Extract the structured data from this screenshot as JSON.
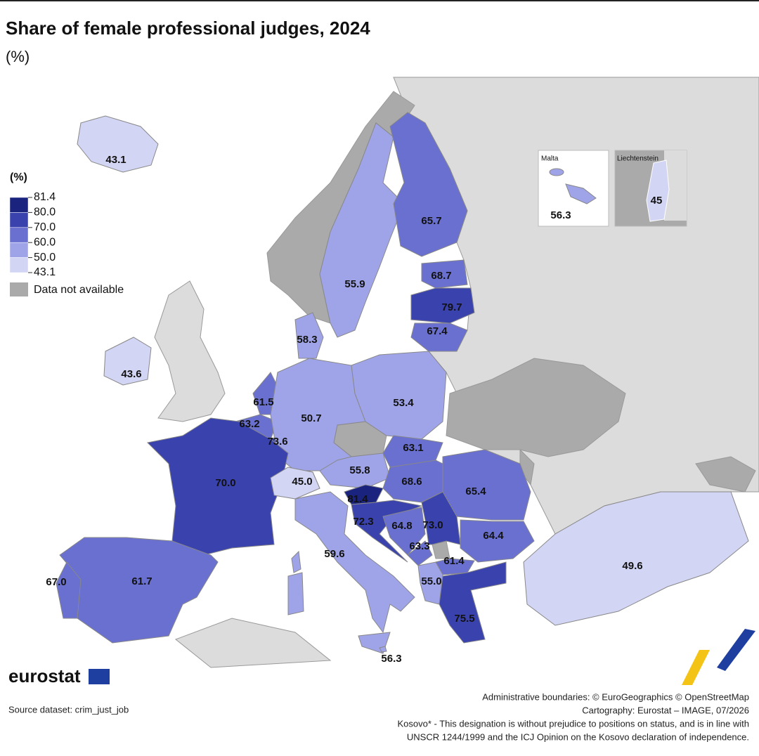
{
  "header": {
    "title": "Share of female professional judges, 2024",
    "subtitle": "(%)"
  },
  "legend": {
    "title": "(%)",
    "breaks": [
      "81.4",
      "80.0",
      "70.0",
      "60.0",
      "50.0",
      "43.1"
    ],
    "colors": [
      "#1a237e",
      "#3a42ad",
      "#6a70cf",
      "#9fa4e8",
      "#d3d5f5"
    ],
    "no_data": {
      "label": "Data not available",
      "color": "#aaaaaa"
    }
  },
  "regions": [
    {
      "value": "43.1"
    },
    {
      "value": "43.6"
    },
    {
      "value": "55.9"
    },
    {
      "value": "65.7"
    },
    {
      "value": "68.7"
    },
    {
      "value": "79.7"
    },
    {
      "value": "67.4"
    },
    {
      "value": "58.3"
    },
    {
      "value": "61.5"
    },
    {
      "value": "63.2"
    },
    {
      "value": "73.6"
    },
    {
      "value": "50.7"
    },
    {
      "value": "53.4"
    },
    {
      "value": "70.0"
    },
    {
      "value": "45.0"
    },
    {
      "value": "55.8"
    },
    {
      "value": "63.1"
    },
    {
      "value": "68.6"
    },
    {
      "value": "65.4"
    },
    {
      "value": "81.4"
    },
    {
      "value": "72.3"
    },
    {
      "value": "64.8"
    },
    {
      "value": "73.0"
    },
    {
      "value": "63.3"
    },
    {
      "value": "64.4"
    },
    {
      "value": "61.4"
    },
    {
      "value": "55.0"
    },
    {
      "value": "75.5"
    },
    {
      "value": "59.6"
    },
    {
      "value": "49.6"
    },
    {
      "value": "61.7"
    },
    {
      "value": "67.0"
    }
  ],
  "insets": [
    {
      "title": "Malta",
      "value": "56.3"
    },
    {
      "title": "Liechtenstein",
      "value": "45"
    }
  ],
  "footer": {
    "logo": "eurostat",
    "source": "Source dataset: crim_just_job",
    "notes": [
      "Administrative boundaries: © EuroGeographics © OpenStreetMap",
      "Cartography: Eurostat – IMAGE, 07/2026",
      "Kosovo* - This designation is without prejudice to positions on status, and is in line with",
      "UNSCR 1244/1999 and the ICJ Opinion on the Kosovo declaration of independence."
    ]
  }
}
